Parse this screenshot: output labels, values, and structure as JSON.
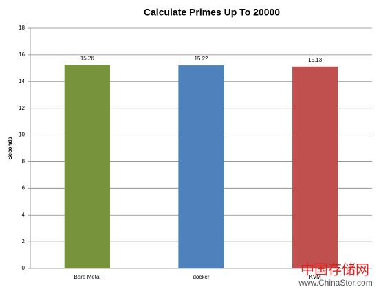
{
  "chart_data": {
    "type": "bar",
    "title": "Calculate Primes Up To 20000",
    "y_label": "Seconds",
    "categories": [
      "Bare Metal",
      "docker",
      "KVM"
    ],
    "values": [
      15.26,
      15.22,
      15.13
    ],
    "colors": [
      "#77933c",
      "#4f81bd",
      "#c0504d"
    ],
    "ylim": [
      0,
      18
    ],
    "yticks": [
      0,
      2,
      4,
      6,
      8,
      10,
      12,
      14,
      16,
      18
    ],
    "grid": true
  },
  "watermark": {
    "brand": "中国存储网",
    "url": "www.ChinaStor.com"
  }
}
